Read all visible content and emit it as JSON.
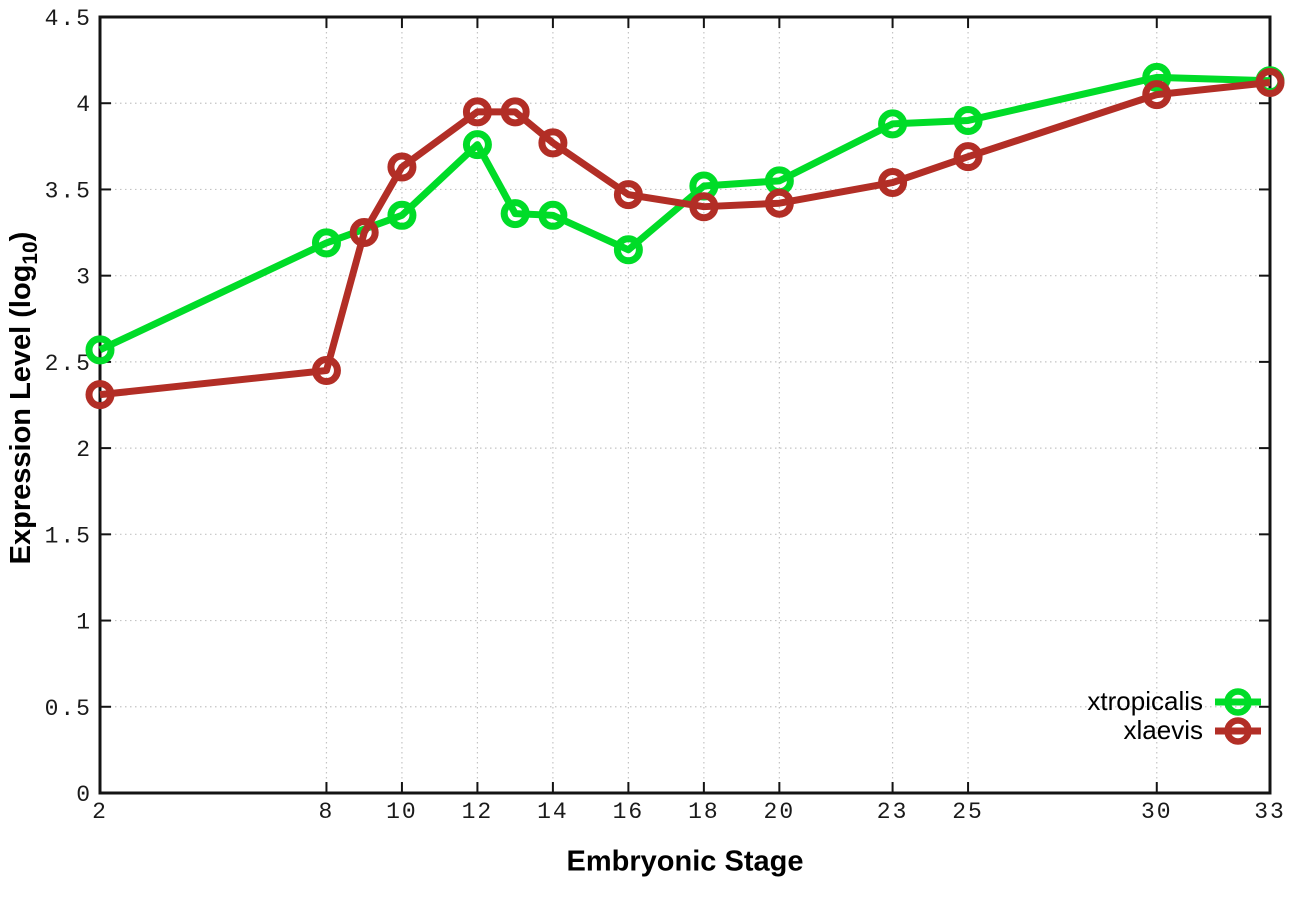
{
  "labels": {
    "x_title": "Embryonic Stage",
    "y_title_prefix": "Expression Level (log",
    "y_title_sub": "10",
    "y_title_suffix": ")"
  },
  "chart_data": {
    "type": "line",
    "title": "",
    "xlabel": "Embryonic Stage",
    "ylabel": "Expression Level (log10)",
    "xlim": [
      2,
      33
    ],
    "ylim": [
      0,
      4.5
    ],
    "x_ticks": [
      2,
      8,
      10,
      12,
      14,
      16,
      18,
      20,
      23,
      25,
      30,
      33
    ],
    "y_ticks": [
      0,
      0.5,
      1,
      1.5,
      2,
      2.5,
      3,
      3.5,
      4,
      4.5
    ],
    "grid": true,
    "grid_style": "dotted",
    "marker": "open-circle",
    "legend_position": "inside-bottom-right",
    "series": [
      {
        "name": "xtropicalis",
        "color": "#00dc28",
        "points": [
          [
            2,
            2.57
          ],
          [
            8,
            3.19
          ],
          [
            10,
            3.35
          ],
          [
            12,
            3.76
          ],
          [
            13,
            3.36
          ],
          [
            14,
            3.35
          ],
          [
            16,
            3.15
          ],
          [
            18,
            3.52
          ],
          [
            20,
            3.55
          ],
          [
            23,
            3.88
          ],
          [
            25,
            3.9
          ],
          [
            30,
            4.15
          ],
          [
            33,
            4.13
          ]
        ]
      },
      {
        "name": "xlaevis",
        "color": "#b22e26",
        "points": [
          [
            2,
            2.31
          ],
          [
            8,
            2.45
          ],
          [
            9,
            3.25
          ],
          [
            10,
            3.63
          ],
          [
            12,
            3.95
          ],
          [
            13,
            3.95
          ],
          [
            14,
            3.77
          ],
          [
            16,
            3.47
          ],
          [
            18,
            3.4
          ],
          [
            20,
            3.42
          ],
          [
            23,
            3.54
          ],
          [
            25,
            3.69
          ],
          [
            30,
            4.05
          ],
          [
            33,
            4.12
          ]
        ]
      }
    ]
  },
  "legend": {
    "items": [
      {
        "label": "xtropicalis"
      },
      {
        "label": "xlaevis"
      }
    ]
  },
  "style": {
    "background": "#ffffff",
    "grid_color": "#c4c4c4",
    "axis_color": "#141414",
    "tick_text_color": "#1a1a1a"
  }
}
